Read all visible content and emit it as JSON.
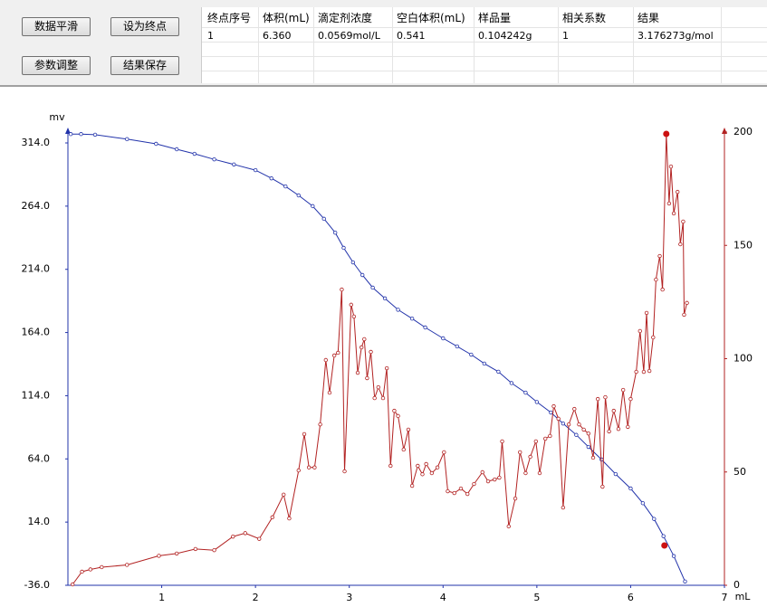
{
  "buttons": [
    "数据平滑",
    "设为终点",
    "参数调整",
    "结果保存"
  ],
  "table": {
    "headers": [
      "终点序号",
      "体积(mL)",
      "滴定剂浓度",
      "空白体积(mL)",
      "样品量",
      "相关系数",
      "结果"
    ],
    "rows": [
      [
        "1",
        "6.360",
        "0.0569mol/L",
        "0.541",
        "0.104242g",
        "1",
        "3.176273g/mol"
      ]
    ]
  },
  "chart_data": {
    "type": "line",
    "y_label": "mv",
    "x_label": "mL",
    "xlim": [
      0,
      7
    ],
    "xticks": [
      1,
      2,
      3,
      4,
      5,
      6,
      7
    ],
    "ylim": [
      -36,
      322.6
    ],
    "yticks": [
      {
        "value": -36,
        "label": "-36.0"
      },
      {
        "value": 14,
        "label": "14.0"
      },
      {
        "value": 64,
        "label": "64.0"
      },
      {
        "value": 114,
        "label": "114.0"
      },
      {
        "value": 164,
        "label": "164.0"
      },
      {
        "value": 214,
        "label": "214.0"
      },
      {
        "value": 264,
        "label": "264.0"
      },
      {
        "value": 314,
        "label": "314.0"
      }
    ],
    "y2lim": [
      0,
      200
    ],
    "y2ticks": [
      0,
      50,
      100,
      150,
      200
    ],
    "series": [
      {
        "color": "#2233aa",
        "axis": "y",
        "x": [
          0.03,
          0.14,
          0.29,
          0.63,
          0.94,
          1.16,
          1.35,
          1.56,
          1.77,
          2.0,
          2.17,
          2.32,
          2.46,
          2.61,
          2.73,
          2.85,
          2.94,
          3.04,
          3.14,
          3.25,
          3.38,
          3.52,
          3.67,
          3.81,
          4.0,
          4.15,
          4.3,
          4.44,
          4.59,
          4.73,
          4.88,
          5.0,
          5.15,
          5.28,
          5.42,
          5.55,
          5.69,
          5.84,
          6.0,
          6.13,
          6.25,
          6.35,
          6.46,
          6.58
        ],
        "values": [
          321,
          321,
          320.5,
          317,
          313.3,
          309,
          305.4,
          301,
          297,
          292.5,
          286,
          279.6,
          272.5,
          264,
          254,
          243,
          231,
          219.5,
          209.5,
          199.5,
          191,
          182,
          175,
          168,
          159.4,
          153,
          146.5,
          139.4,
          133,
          124,
          116.4,
          109,
          100.7,
          92,
          83,
          73.5,
          63.5,
          52,
          40.6,
          29,
          16.5,
          2.9,
          -12.9,
          -33
        ]
      },
      {
        "color": "#b22222",
        "axis": "y2",
        "x": [
          0.05,
          0.15,
          0.24,
          0.36,
          0.63,
          0.97,
          1.16,
          1.36,
          1.56,
          1.76,
          1.89,
          2.04,
          2.18,
          2.3,
          2.36,
          2.46,
          2.52,
          2.57,
          2.63,
          2.69,
          2.75,
          2.79,
          2.84,
          2.88,
          2.92,
          2.95,
          3.02,
          3.05,
          3.09,
          3.13,
          3.16,
          3.19,
          3.23,
          3.27,
          3.31,
          3.36,
          3.4,
          3.44,
          3.48,
          3.52,
          3.58,
          3.63,
          3.67,
          3.73,
          3.78,
          3.82,
          3.88,
          3.94,
          4.01,
          4.05,
          4.12,
          4.19,
          4.26,
          4.33,
          4.42,
          4.48,
          4.55,
          4.6,
          4.63,
          4.7,
          4.77,
          4.82,
          4.88,
          4.93,
          4.99,
          5.03,
          5.09,
          5.14,
          5.18,
          5.23,
          5.28,
          5.34,
          5.4,
          5.45,
          5.5,
          5.55,
          5.6,
          5.65,
          5.7,
          5.73,
          5.77,
          5.82,
          5.87,
          5.92,
          5.97,
          6.0,
          6.06,
          6.1,
          6.14,
          6.17,
          6.2,
          6.24,
          6.27,
          6.31,
          6.34,
          6.38,
          6.41,
          6.43,
          6.46,
          6.5,
          6.53,
          6.56,
          6.57,
          6.6
        ],
        "values": [
          0.4,
          6,
          7,
          8,
          9,
          13,
          14,
          16,
          15.5,
          21.5,
          23,
          20.5,
          30,
          40,
          29.5,
          50.7,
          66.7,
          52,
          52,
          71,
          99.4,
          85,
          101.4,
          102.6,
          130.5,
          50.3,
          123.8,
          118.6,
          93.8,
          105,
          108.6,
          91.4,
          103,
          82.6,
          87.4,
          82.6,
          95.8,
          52.7,
          77,
          74.7,
          59.9,
          68.7,
          43.9,
          52.7,
          49,
          53.5,
          49.5,
          52,
          58.7,
          41.5,
          40.7,
          42.7,
          40.3,
          44.7,
          49.9,
          45.9,
          46.7,
          47.5,
          63.5,
          26,
          38.3,
          58.7,
          49.5,
          56.7,
          63.5,
          49.5,
          64.7,
          65.9,
          79,
          73.5,
          34.3,
          71,
          77.8,
          71,
          68.7,
          67,
          56.3,
          82.2,
          43.5,
          83,
          67.9,
          77,
          69,
          86.2,
          69.9,
          82.2,
          94.2,
          112.2,
          94.2,
          120.2,
          94.6,
          109.4,
          134.9,
          145.3,
          130.5,
          199.2,
          168.5,
          184.8,
          164.1,
          173.6,
          150.5,
          160.5,
          119.4,
          124.6
        ]
      }
    ],
    "markers": [
      {
        "x": 6.36,
        "y": -4.5,
        "axis": "y",
        "color": "#cc1111"
      },
      {
        "x": 6.38,
        "y": 199.2,
        "axis": "y2",
        "color": "#cc1111"
      }
    ]
  }
}
